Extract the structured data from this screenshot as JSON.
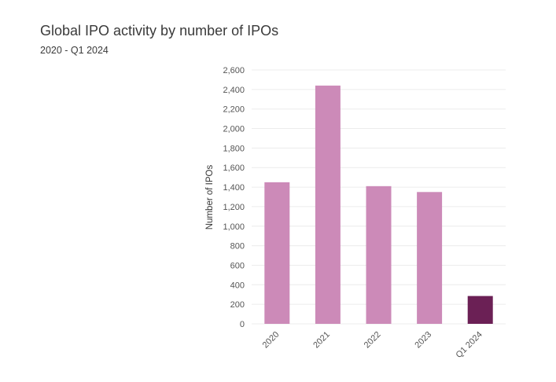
{
  "title": "Global IPO activity by number of IPOs",
  "subtitle": "2020 - Q1 2024",
  "colors": {
    "bar_default": "#cc8ab8",
    "bar_highlight": "#6b2055",
    "gridline": "#ececec",
    "axis_text": "#555555"
  },
  "chart_data": {
    "type": "bar",
    "categories": [
      "2020",
      "2021",
      "2022",
      "2023",
      "Q1 2024"
    ],
    "values": [
      1450,
      2440,
      1410,
      1350,
      285
    ],
    "highlight": [
      "Q1 2024"
    ],
    "title": "Global IPO activity by number of IPOs",
    "subtitle": "2020 - Q1 2024",
    "xlabel": "",
    "ylabel": "Number of IPOs",
    "ylim": [
      0,
      2600
    ],
    "yticks": [
      0,
      200,
      400,
      600,
      800,
      1000,
      1200,
      1400,
      1600,
      1800,
      2000,
      2200,
      2400,
      2600
    ],
    "ytick_labels": [
      "0",
      "200",
      "400",
      "600",
      "800",
      "1,000",
      "1,200",
      "1,400",
      "1,600",
      "1,800",
      "2,000",
      "2,200",
      "2,400",
      "2,600"
    ],
    "grid": true,
    "legend": false
  }
}
